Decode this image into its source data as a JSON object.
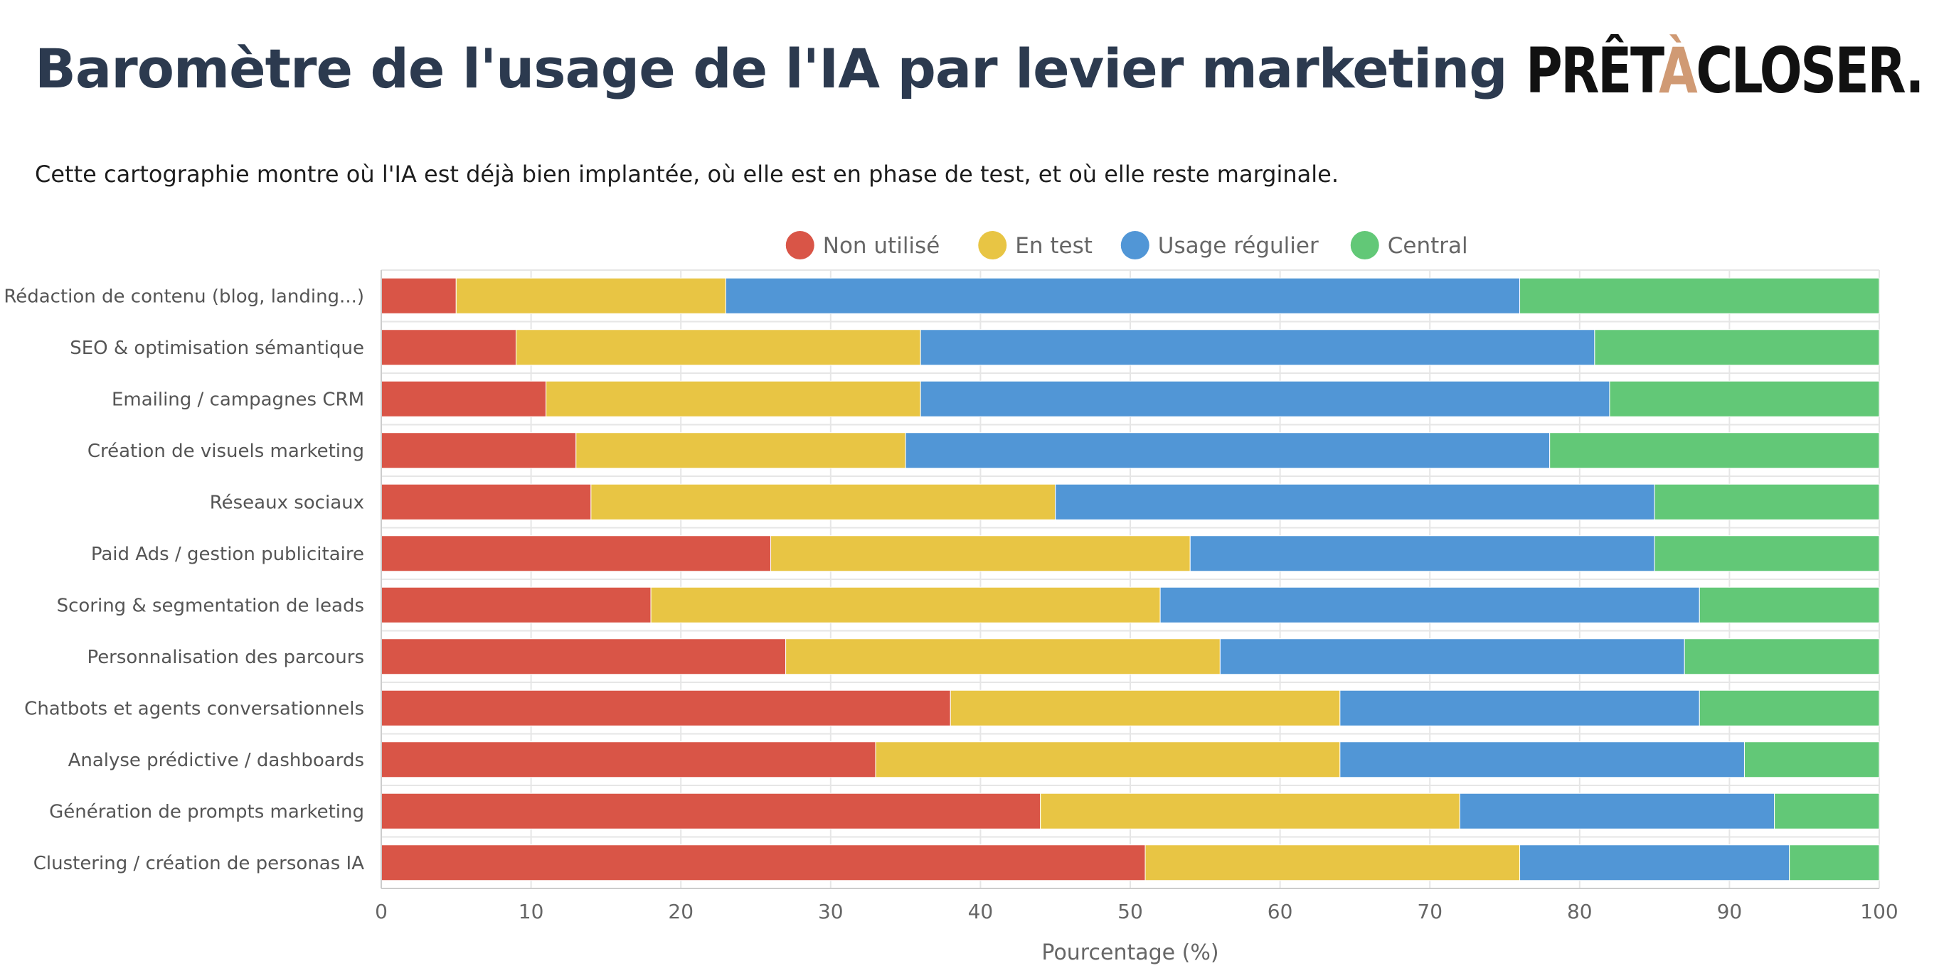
{
  "header": {
    "title": "Baromètre de l'usage de l'IA par levier marketing",
    "subtitle": "Cette cartographie montre où l'IA est déjà bien implantée, où elle est en phase de test, et où elle reste marginale."
  },
  "logo": {
    "text_part1": "PRÊT",
    "text_accent": "À",
    "text_part2": "CLOSER.",
    "color_main": "#111111",
    "color_accent": "#d09a74"
  },
  "chart_data": {
    "type": "bar",
    "orientation": "horizontal",
    "stacked": true,
    "title": "",
    "xlabel": "Pourcentage (%)",
    "ylabel": "",
    "xlim": [
      0,
      100
    ],
    "x_ticks": [
      0,
      10,
      20,
      30,
      40,
      50,
      60,
      70,
      80,
      90,
      100
    ],
    "grid": true,
    "legend_position": "top-center",
    "categories": [
      "Rédaction de contenu (blog, landing...)",
      "SEO & optimisation sémantique",
      "Emailing / campagnes CRM",
      "Création de visuels marketing",
      "Réseaux sociaux",
      "Paid Ads / gestion publicitaire",
      "Scoring & segmentation de leads",
      "Personnalisation des parcours",
      "Chatbots et agents conversationnels",
      "Analyse prédictive / dashboards",
      "Génération de prompts marketing",
      "Clustering / création de personas IA"
    ],
    "series": [
      {
        "name": "Non utilisé",
        "color": "#d95547",
        "values": [
          5,
          9,
          11,
          13,
          14,
          26,
          18,
          27,
          38,
          33,
          44,
          51
        ]
      },
      {
        "name": "En test",
        "color": "#e8c544",
        "values": [
          18,
          27,
          25,
          22,
          31,
          28,
          34,
          29,
          26,
          31,
          28,
          25
        ]
      },
      {
        "name": "Usage régulier",
        "color": "#5196d6",
        "values": [
          53,
          45,
          46,
          43,
          40,
          31,
          36,
          31,
          24,
          27,
          21,
          18
        ]
      },
      {
        "name": "Central",
        "color": "#62c877",
        "values": [
          24,
          19,
          18,
          22,
          15,
          15,
          12,
          13,
          12,
          9,
          7,
          6
        ]
      }
    ]
  }
}
